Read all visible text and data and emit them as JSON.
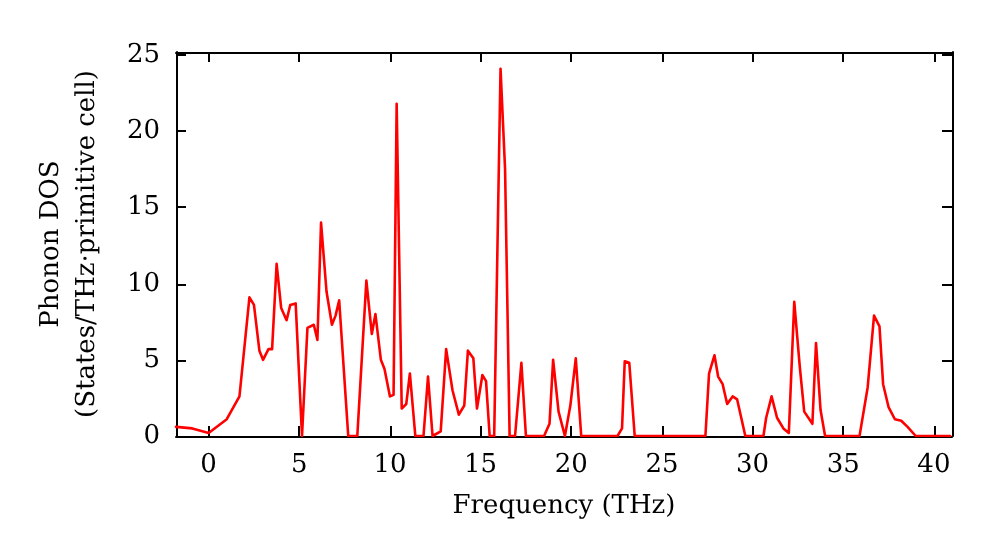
{
  "chart_data": {
    "type": "line",
    "xlabel": "Frequency (THz)",
    "ylabel": "Phonon DOS\n(States/THz·primitive cell)",
    "xlim": [
      -1.8,
      41
    ],
    "ylim": [
      0,
      25.2
    ],
    "xticks": [
      0,
      5,
      10,
      15,
      20,
      25,
      30,
      35,
      40
    ],
    "yticks": [
      0,
      5,
      10,
      15,
      20,
      25
    ],
    "grid": false,
    "marker": "none",
    "line_style": "solid",
    "x": [
      -1.8,
      -0.9,
      0,
      1.0,
      1.7,
      2.25,
      2.5,
      2.8,
      3.0,
      3.3,
      3.5,
      3.75,
      4.0,
      4.3,
      4.5,
      4.8,
      5.15,
      5.45,
      5.8,
      6.0,
      6.2,
      6.5,
      6.8,
      7.0,
      7.2,
      7.7,
      8.2,
      8.7,
      9.0,
      9.2,
      9.5,
      9.7,
      10.0,
      10.2,
      10.37,
      10.65,
      10.9,
      11.1,
      11.4,
      11.85,
      12.1,
      12.35,
      12.8,
      13.1,
      13.45,
      13.8,
      14.1,
      14.3,
      14.6,
      14.8,
      15.1,
      15.3,
      15.5,
      15.75,
      16.1,
      16.35,
      16.6,
      16.9,
      17.25,
      17.5,
      18.5,
      18.8,
      19.0,
      19.3,
      19.65,
      19.95,
      20.25,
      20.55,
      22.55,
      22.8,
      22.95,
      23.2,
      23.5,
      27.4,
      27.6,
      27.9,
      28.1,
      28.35,
      28.6,
      28.9,
      29.15,
      29.6,
      30.6,
      30.75,
      31.05,
      31.35,
      31.7,
      32.0,
      32.3,
      32.6,
      32.85,
      33.3,
      33.5,
      33.75,
      34.0,
      35.9,
      36.35,
      36.7,
      37.0,
      37.2,
      37.5,
      37.85,
      38.2,
      38.55,
      39.0,
      40.9
    ],
    "series": [
      {
        "color": "#ff0000",
        "values": [
          0.6,
          0.5,
          0.2,
          1.1,
          2.6,
          9.1,
          8.6,
          5.6,
          5.0,
          5.7,
          5.7,
          11.3,
          8.4,
          7.6,
          8.6,
          8.7,
          0,
          7.1,
          7.3,
          6.3,
          14.0,
          9.5,
          7.3,
          7.9,
          8.9,
          0,
          0,
          10.2,
          6.7,
          8.0,
          5.0,
          4.4,
          2.6,
          2.7,
          21.8,
          1.8,
          2.1,
          4.1,
          0,
          0,
          3.9,
          0,
          0.3,
          5.7,
          3.0,
          1.4,
          2.0,
          5.6,
          5.1,
          1.8,
          4.0,
          3.6,
          0,
          0,
          24.1,
          17.5,
          0,
          0,
          4.8,
          0,
          0,
          0.8,
          5.0,
          1.6,
          0,
          2.0,
          5.1,
          0,
          0,
          0.5,
          4.9,
          4.8,
          0,
          0,
          4.1,
          5.3,
          3.9,
          3.4,
          2.1,
          2.6,
          2.4,
          0,
          0,
          1.2,
          2.6,
          1.2,
          0.5,
          0.2,
          8.8,
          4.6,
          1.6,
          0.8,
          6.1,
          1.7,
          0,
          0,
          3.2,
          7.9,
          7.2,
          3.4,
          1.9,
          1.1,
          1.0,
          0.6,
          0,
          0
        ]
      }
    ]
  }
}
